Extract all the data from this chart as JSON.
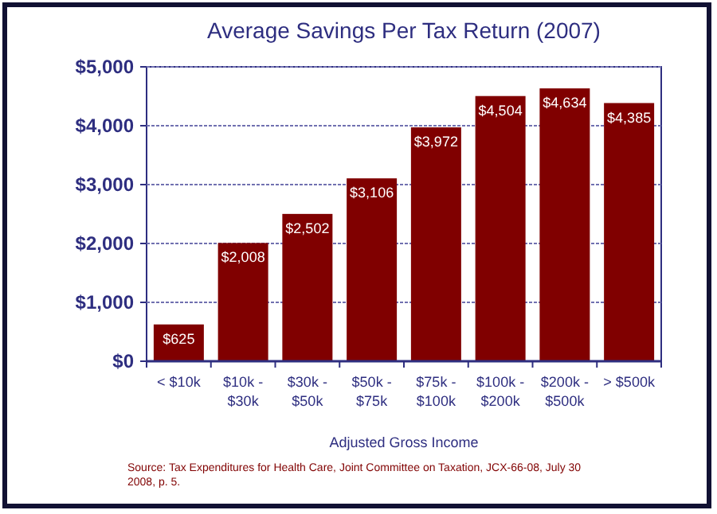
{
  "chart_data": {
    "type": "bar",
    "title": "Average Savings Per Tax Return (2007)",
    "xlabel": "Adjusted Gross Income",
    "categories": [
      "< $10k",
      "$10k - $30k",
      "$30k - $50k",
      "$50k - $75k",
      "$75k - $100k",
      "$100k - $200k",
      "$200k - $500k",
      "> $500k"
    ],
    "values": [
      625,
      2008,
      2502,
      3106,
      3972,
      4504,
      4634,
      4385
    ],
    "value_labels": [
      "$625",
      "$2,008",
      "$2,502",
      "$3,106",
      "$3,972",
      "$4,504",
      "$4,634",
      "$4,385"
    ],
    "color": "#800000",
    "ylim": [
      0,
      5000
    ],
    "yticks": [
      {
        "value": 0,
        "label": "$0"
      },
      {
        "value": 1000,
        "label": "$1,000"
      },
      {
        "value": 2000,
        "label": "$2,000"
      },
      {
        "value": 3000,
        "label": "$3,000"
      },
      {
        "value": 4000,
        "label": "$4,000"
      },
      {
        "value": 5000,
        "label": "$5,000"
      }
    ],
    "grid": "y",
    "annotations": [
      "Source:    Tax Expenditures for Health Care, Joint Committee on Taxation, JCX-66-08, July 30 2008, p. 5."
    ]
  }
}
